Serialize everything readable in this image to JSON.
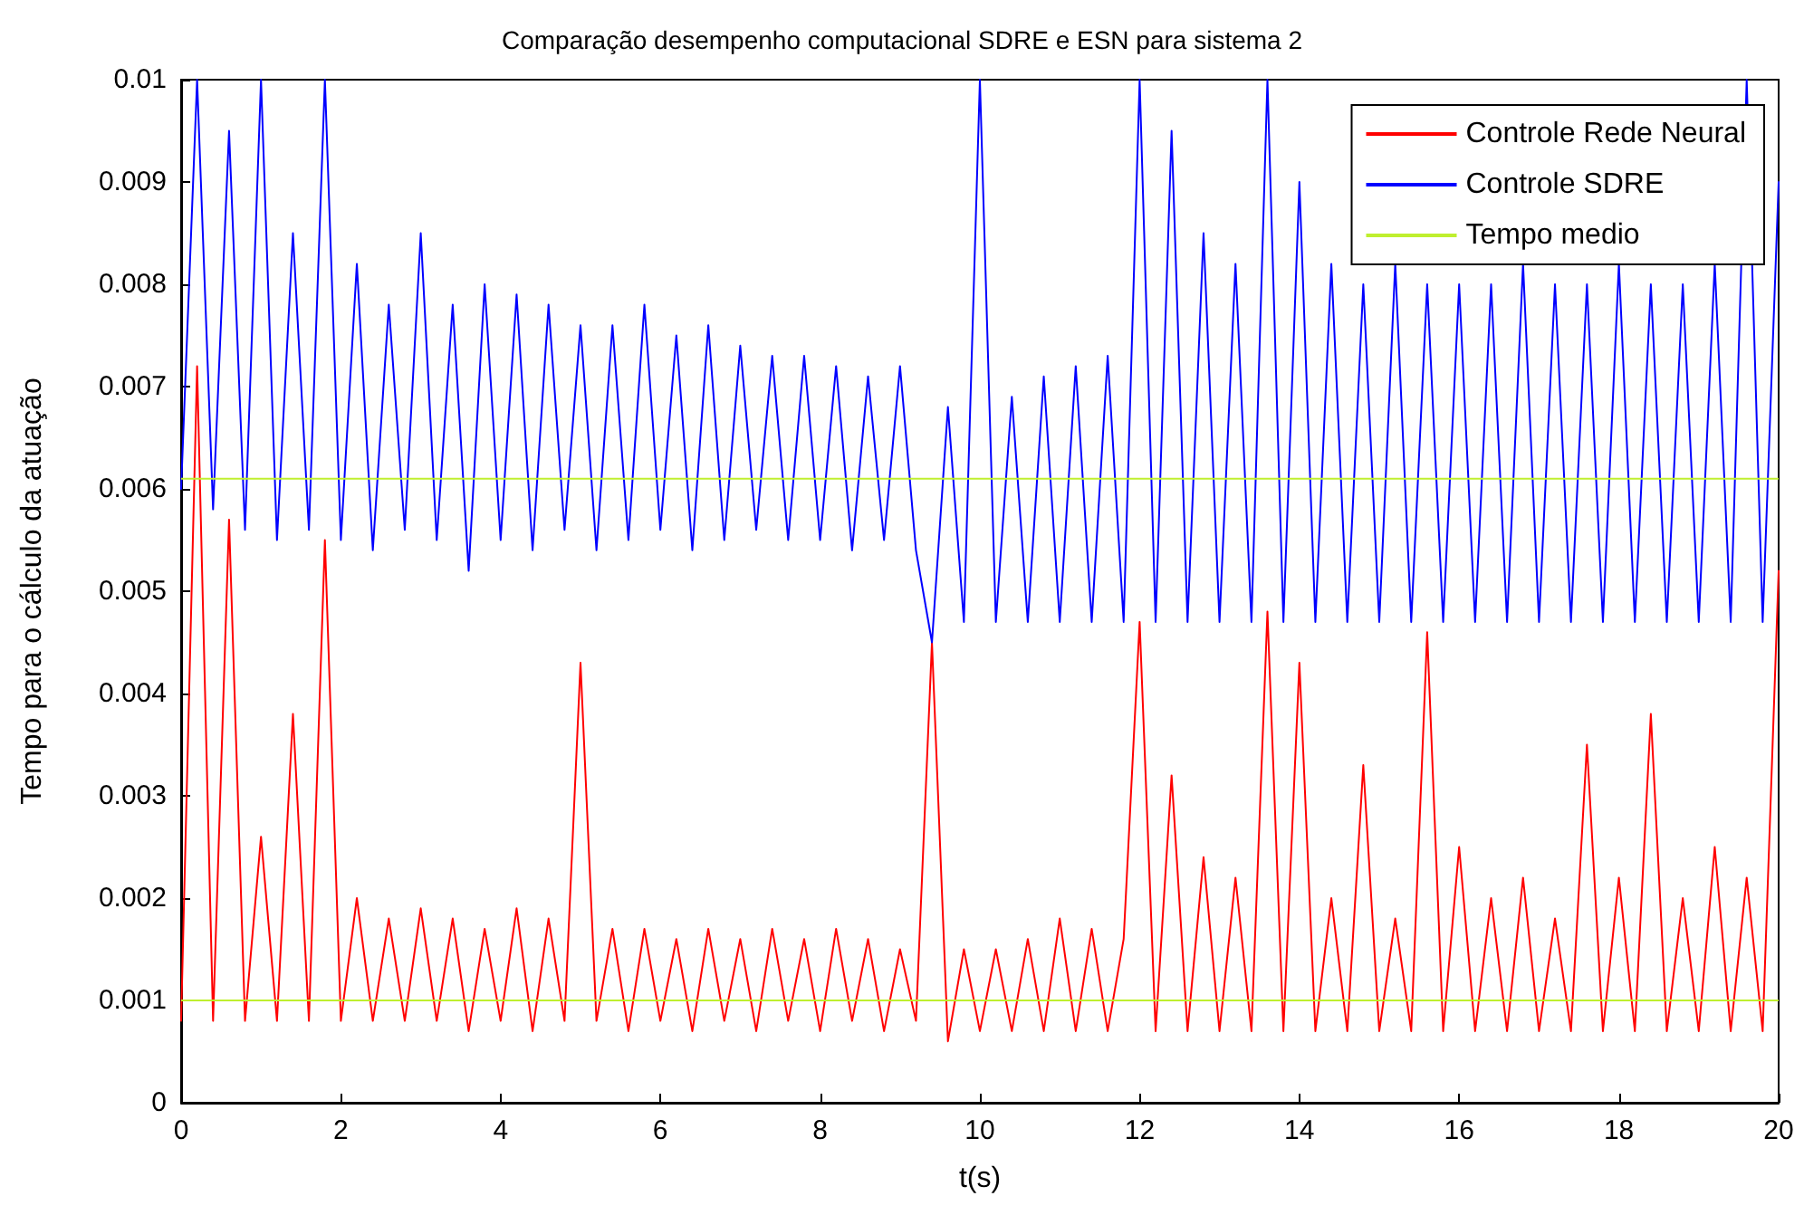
{
  "chart_data": {
    "type": "line",
    "title": "Comparação desempenho computacional SDRE e ESN para sistema 2",
    "xlabel": "t(s)",
    "ylabel": "Tempo para o cálculo da atuação",
    "x": [
      0,
      0.2,
      0.4,
      0.6,
      0.8,
      1,
      1.2,
      1.4,
      1.6,
      1.8,
      2,
      2.2,
      2.4,
      2.6,
      2.8,
      3,
      3.2,
      3.4,
      3.6,
      3.8,
      4,
      4.2,
      4.4,
      4.6,
      4.8,
      5,
      5.2,
      5.4,
      5.6,
      5.8,
      6,
      6.2,
      6.4,
      6.6,
      6.8,
      7,
      7.2,
      7.4,
      7.6,
      7.8,
      8,
      8.2,
      8.4,
      8.6,
      8.8,
      9,
      9.2,
      9.4,
      9.6,
      9.8,
      10,
      10.2,
      10.4,
      10.6,
      10.8,
      11,
      11.2,
      11.4,
      11.6,
      11.8,
      12,
      12.2,
      12.4,
      12.6,
      12.8,
      13,
      13.2,
      13.4,
      13.6,
      13.8,
      14,
      14.2,
      14.4,
      14.6,
      14.8,
      15,
      15.2,
      15.4,
      15.6,
      15.8,
      16,
      16.2,
      16.4,
      16.6,
      16.8,
      17,
      17.2,
      17.4,
      17.6,
      17.8,
      18,
      18.2,
      18.4,
      18.6,
      18.8,
      19,
      19.2,
      19.4,
      19.6,
      19.8,
      20
    ],
    "series": [
      {
        "name": "Controle Rede Neural",
        "color": "#ff0000",
        "values": [
          0.0008,
          0.0072,
          0.0008,
          0.0057,
          0.0008,
          0.0026,
          0.0008,
          0.0038,
          0.0008,
          0.0055,
          0.0008,
          0.002,
          0.0008,
          0.0018,
          0.0008,
          0.0019,
          0.0008,
          0.0018,
          0.0007,
          0.0017,
          0.0008,
          0.0019,
          0.0007,
          0.0018,
          0.0008,
          0.0043,
          0.0008,
          0.0017,
          0.0007,
          0.0017,
          0.0008,
          0.0016,
          0.0007,
          0.0017,
          0.0008,
          0.0016,
          0.0007,
          0.0017,
          0.0008,
          0.0016,
          0.0007,
          0.0017,
          0.0008,
          0.0016,
          0.0007,
          0.0015,
          0.0008,
          0.0045,
          0.0006,
          0.0015,
          0.0007,
          0.0015,
          0.0007,
          0.0016,
          0.0007,
          0.0018,
          0.0007,
          0.0017,
          0.0007,
          0.0016,
          0.0047,
          0.0007,
          0.0032,
          0.0007,
          0.0024,
          0.0007,
          0.0022,
          0.0007,
          0.0048,
          0.0007,
          0.0043,
          0.0007,
          0.002,
          0.0007,
          0.0033,
          0.0007,
          0.0018,
          0.0007,
          0.0046,
          0.0007,
          0.0025,
          0.0007,
          0.002,
          0.0007,
          0.0022,
          0.0007,
          0.0018,
          0.0007,
          0.0035,
          0.0007,
          0.0022,
          0.0007,
          0.0038,
          0.0007,
          0.002,
          0.0007,
          0.0025,
          0.0007,
          0.0022,
          0.0007,
          0.0052
        ]
      },
      {
        "name": "Controle SDRE",
        "color": "#0000ff",
        "values": [
          0.006,
          0.01,
          0.0058,
          0.0095,
          0.0056,
          0.01,
          0.0055,
          0.0085,
          0.0056,
          0.01,
          0.0055,
          0.0082,
          0.0054,
          0.0078,
          0.0056,
          0.0085,
          0.0055,
          0.0078,
          0.0052,
          0.008,
          0.0055,
          0.0079,
          0.0054,
          0.0078,
          0.0056,
          0.0076,
          0.0054,
          0.0076,
          0.0055,
          0.0078,
          0.0056,
          0.0075,
          0.0054,
          0.0076,
          0.0055,
          0.0074,
          0.0056,
          0.0073,
          0.0055,
          0.0073,
          0.0055,
          0.0072,
          0.0054,
          0.0071,
          0.0055,
          0.0072,
          0.0054,
          0.0045,
          0.0068,
          0.0047,
          0.01,
          0.0047,
          0.0069,
          0.0047,
          0.0071,
          0.0047,
          0.0072,
          0.0047,
          0.0073,
          0.0047,
          0.01,
          0.0047,
          0.0095,
          0.0047,
          0.0085,
          0.0047,
          0.0082,
          0.0047,
          0.01,
          0.0047,
          0.009,
          0.0047,
          0.0082,
          0.0047,
          0.008,
          0.0047,
          0.0082,
          0.0047,
          0.008,
          0.0047,
          0.008,
          0.0047,
          0.008,
          0.0047,
          0.0082,
          0.0047,
          0.008,
          0.0047,
          0.008,
          0.0047,
          0.0082,
          0.0047,
          0.008,
          0.0047,
          0.008,
          0.0047,
          0.0082,
          0.0047,
          0.01,
          0.0047,
          0.009
        ]
      }
    ],
    "ref_lines": [
      {
        "axis": "y",
        "value": 0.0061,
        "label": "Tempo medio",
        "color": "#bfef2f"
      },
      {
        "axis": "y",
        "value": 0.001,
        "color": "#bfef2f"
      }
    ],
    "xlim": [
      0,
      20
    ],
    "xticks": [
      0,
      2,
      4,
      6,
      8,
      10,
      12,
      14,
      16,
      18,
      20
    ],
    "ylim": [
      0,
      0.01
    ],
    "yticks": [
      0,
      0.001,
      0.002,
      0.003,
      0.004,
      0.005,
      0.006,
      0.007,
      0.008,
      0.009,
      0.01
    ],
    "legend": "top right",
    "grid": false,
    "marker": "none",
    "line_style": "solid"
  }
}
